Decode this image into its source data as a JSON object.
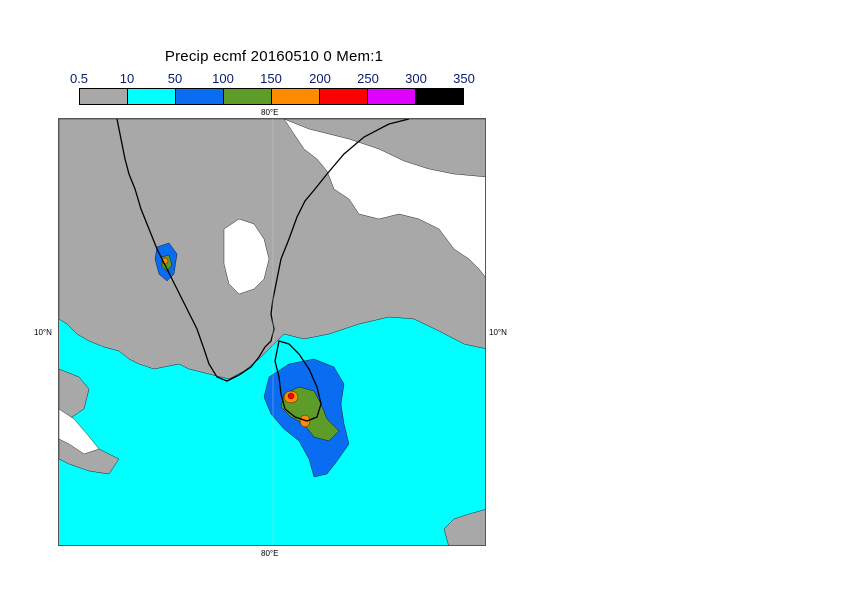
{
  "title": "Precip ecmf 20160510 0 Mem:1",
  "legend": {
    "labels": [
      "0.5",
      "10",
      "50",
      "100",
      "150",
      "200",
      "250",
      "300",
      "350"
    ],
    "colors": [
      "#a8a8a8",
      "#00ffff",
      "#0a6cf0",
      "#5e9c2a",
      "#ff8c00",
      "#ff0000",
      "#e000ff",
      "#000000"
    ]
  },
  "axes": {
    "top_lon": "80°E",
    "bottom_lon": "80°E",
    "left_lat": "10°N",
    "right_lat": "10°N"
  },
  "map_colors": {
    "land": "#ffffff",
    "sea_grey": "#a8a8a8",
    "cyan": "#00ffff",
    "blue": "#0a6cf0",
    "green": "#5e9c2a",
    "orange": "#ff8c00",
    "red": "#ff0000",
    "coast": "#000000"
  }
}
